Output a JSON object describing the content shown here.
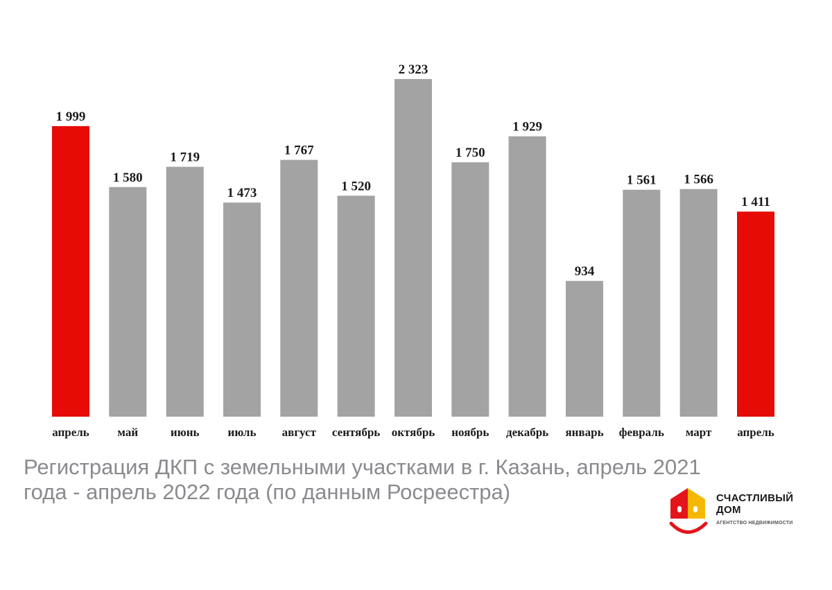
{
  "chart_data": {
    "type": "bar",
    "categories": [
      "апрель",
      "май",
      "июнь",
      "июль",
      "август",
      "сентябрь",
      "октябрь",
      "ноябрь",
      "декабрь",
      "январь",
      "февраль",
      "март",
      "апрель"
    ],
    "values": [
      1999,
      1580,
      1719,
      1473,
      1767,
      1520,
      2323,
      1750,
      1929,
      934,
      1561,
      1566,
      1411
    ],
    "value_labels": [
      "1 999",
      "1 580",
      "1 719",
      "1 473",
      "1 767",
      "1 520",
      "2 323",
      "1 750",
      "1 929",
      "934",
      "1 561",
      "1 566",
      "1 411"
    ],
    "highlight_indices": [
      0,
      12
    ],
    "colors": {
      "default": "#a3a3a3",
      "highlight": "#e60b05"
    },
    "ylim": [
      0,
      2323
    ],
    "grid": false,
    "legend": "none"
  },
  "caption": {
    "line1": "Регистрация ДКП с земельными участками в г. Казань, апрель 2021",
    "line2": "года - апрель 2022 года (по данным Росреестра)"
  },
  "logo": {
    "name_line1": "СЧАСТЛИВЫЙ",
    "name_line2": "ДОМ",
    "tagline": "АГЕНТСТВО НЕДВИЖИМОСТИ",
    "colors": {
      "red": "#e3151b",
      "yellow": "#f5b800"
    },
    "icon": "house-smile-icon"
  }
}
